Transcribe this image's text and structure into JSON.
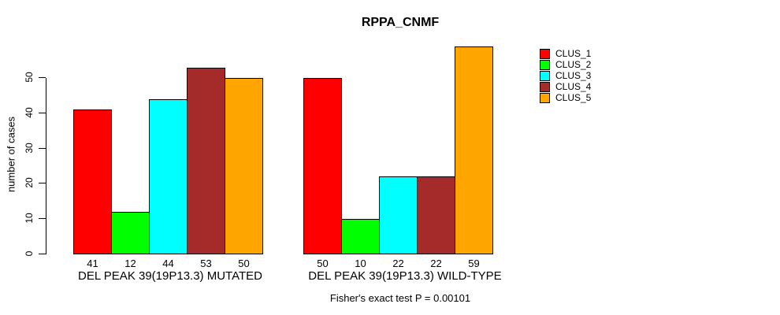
{
  "chart_data": {
    "type": "bar",
    "title": "RPPA_CNMF",
    "xlabel": "",
    "ylabel": "number of cases",
    "ylim": [
      0,
      59
    ],
    "yticks": [
      0,
      10,
      20,
      30,
      40,
      50
    ],
    "grid": false,
    "legend_position": "right",
    "categories": [
      "DEL PEAK 39(19P13.3) MUTATED",
      "DEL PEAK 39(19P13.3) WILD-TYPE"
    ],
    "series": [
      {
        "name": "CLUS_1",
        "color": "#FF0000",
        "values": [
          41,
          50
        ]
      },
      {
        "name": "CLUS_2",
        "color": "#00FF00",
        "values": [
          12,
          10
        ]
      },
      {
        "name": "CLUS_3",
        "color": "#00FFFF",
        "values": [
          44,
          22
        ]
      },
      {
        "name": "CLUS_4",
        "color": "#A52A2A",
        "values": [
          53,
          22
        ]
      },
      {
        "name": "CLUS_5",
        "color": "#FFA500",
        "values": [
          50,
          59
        ]
      }
    ],
    "bar_value_labels": [
      [
        41,
        12,
        44,
        53,
        50
      ],
      [
        50,
        10,
        22,
        22,
        59
      ]
    ],
    "footnote": "Fisher's exact test P = 0.00101",
    "axis_color": "#000000",
    "background_color": "#FFFFFF"
  }
}
